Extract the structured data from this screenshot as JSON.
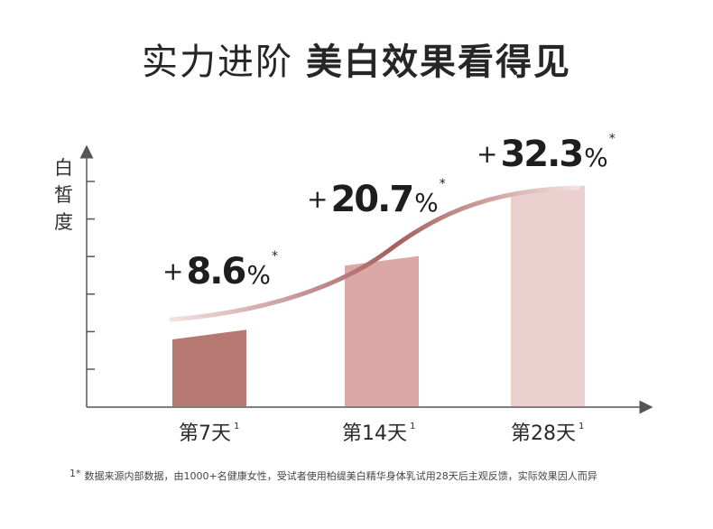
{
  "title": {
    "part_a": "实力进阶",
    "part_b": "美白效果看得见"
  },
  "chart_data": {
    "type": "bar",
    "title": "实力进阶 美白效果看得见",
    "ylabel": "白皙度",
    "xlabel": "",
    "categories": [
      "第7天",
      "第14天",
      "第28天"
    ],
    "category_superscript": "1",
    "values": [
      8.6,
      20.7,
      32.3
    ],
    "value_labels": [
      "8.6",
      "20.7",
      "32.3"
    ],
    "label_prefix": "+",
    "label_suffix": "%",
    "label_mark": "*",
    "bar_colors": [
      "#b57873",
      "#dba8a7",
      "#ebd0cf"
    ],
    "trend_curve": true,
    "y_ticks_count": 6,
    "grid": false,
    "legend": "none"
  },
  "footnote": {
    "mark": "1*",
    "text": "数据来源内部数据，由1000+名健康女性，受试者使用柏缇美白精华身体乳试用28天后主观反馈，实际效果因人而异"
  },
  "colors": {
    "axis": "#555555",
    "curve_light": "#f3e2e1",
    "curve_dark": "#a65f5c"
  }
}
